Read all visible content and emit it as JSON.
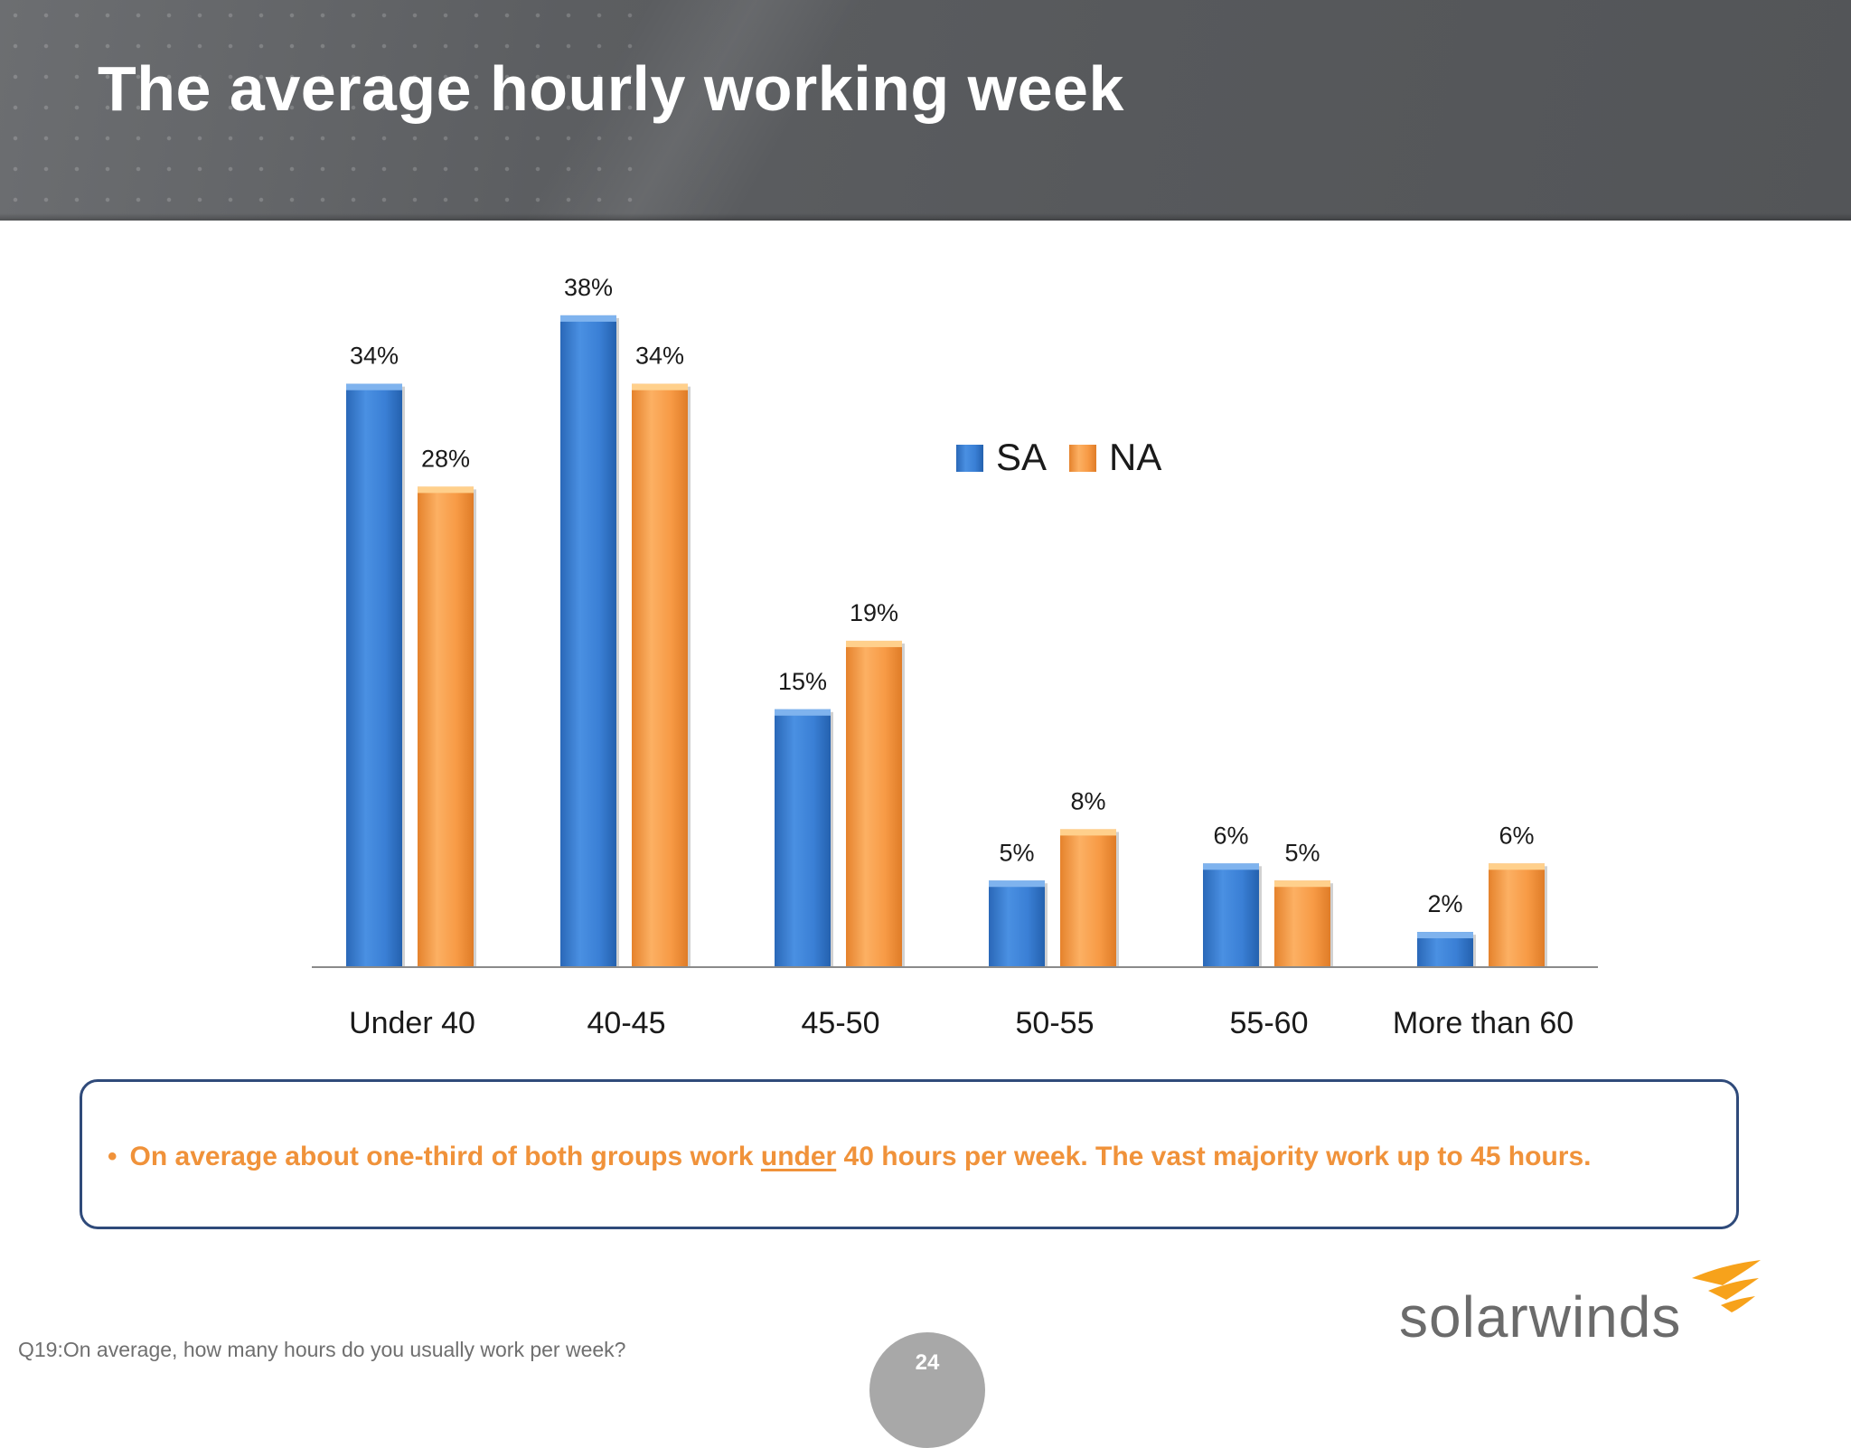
{
  "title": "The average hourly working week",
  "chart_data": {
    "type": "bar",
    "categories": [
      "Under 40",
      "40-45",
      "45-50",
      "50-55",
      "55-60",
      "More than 60"
    ],
    "series": [
      {
        "name": "SA",
        "values": [
          34,
          38,
          15,
          5,
          6,
          2
        ],
        "labels": [
          "34%",
          "38%",
          "15%",
          "5%",
          "6%",
          "2%"
        ],
        "color": "#3a7fd5"
      },
      {
        "name": "NA",
        "values": [
          28,
          34,
          19,
          8,
          5,
          6
        ],
        "labels": [
          "28%",
          "34%",
          "19%",
          "8%",
          "5%",
          "6%"
        ],
        "color": "#f79a45"
      }
    ],
    "title": "",
    "xlabel": "",
    "ylabel": "",
    "ylim": [
      0,
      38
    ],
    "grid": false,
    "legend": "center-right"
  },
  "note": {
    "bullet": "•",
    "before": "On average about one-third of both groups work ",
    "underlined": "under",
    "after": " 40 hours per week.  The vast majority work up to 45 hours."
  },
  "footnote": "Q19:On average, how many hours do you usually work per week?",
  "page_number": "24",
  "logo": {
    "text": "solarwinds",
    "color": "#6b6b6b",
    "accent": "#f7a21b"
  }
}
